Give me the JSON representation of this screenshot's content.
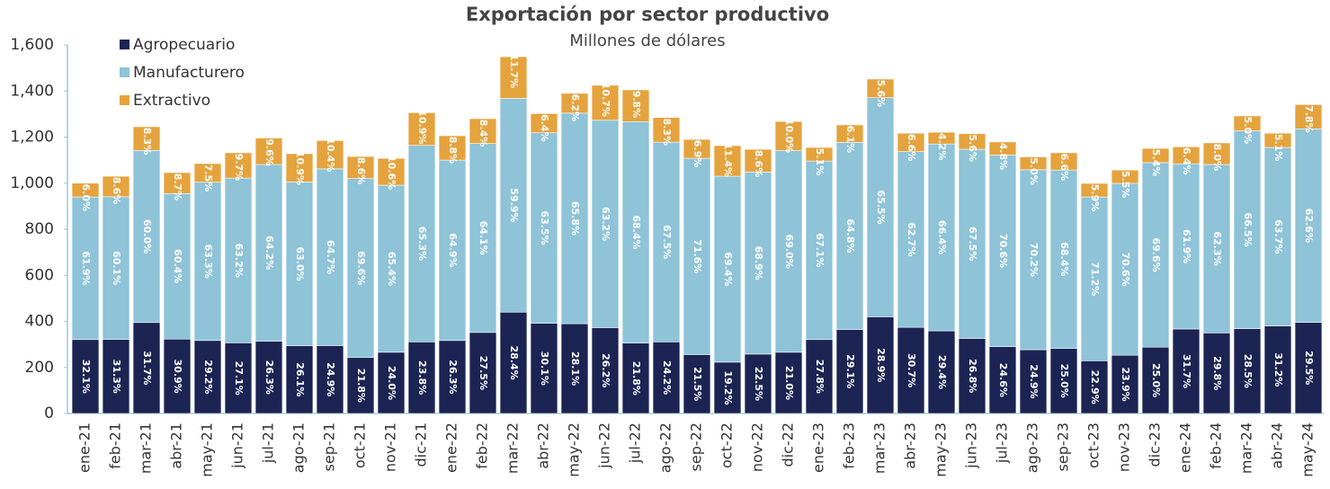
{
  "chart_data": {
    "type": "stacked_bar",
    "title": "Exportación por sector productivo",
    "subtitle": "Millones de dólares",
    "categories": [
      "ene-21",
      "feb-21",
      "mar-21",
      "abr-21",
      "may-21",
      "jun-21",
      "jul-21",
      "ago-21",
      "sep-21",
      "oct-21",
      "nov-21",
      "dic-21",
      "ene-22",
      "feb-22",
      "mar-22",
      "abr-22",
      "may-22",
      "jun-22",
      "jul-22",
      "ago-22",
      "sep-22",
      "oct-22",
      "nov-22",
      "dic-22",
      "ene-23",
      "feb-23",
      "mar-23",
      "abr-23",
      "may-23",
      "jun-23",
      "jul-23",
      "ago-23",
      "sep-23",
      "oct-23",
      "nov-23",
      "dic-23",
      "ene-24",
      "feb-24",
      "mar-24",
      "abr-24",
      "may-24"
    ],
    "series": [
      {
        "name": "Agropecuario",
        "color": "#1b2452",
        "values": [
          321,
          322,
          395,
          323,
          317,
          307,
          314,
          294,
          295,
          243,
          266,
          311,
          317,
          352,
          440,
          392,
          390,
          373,
          306,
          311,
          256,
          223,
          258,
          266,
          321,
          365,
          420,
          374,
          359,
          326,
          290,
          277,
          283,
          229,
          253,
          288,
          367,
          350,
          368,
          380,
          396
        ],
        "labels": [
          "32.1%",
          "31.3%",
          "31.7%",
          "30.9%",
          "29.2%",
          "27.1%",
          "26.3%",
          "26.1%",
          "24.9%",
          "21.8%",
          "24.0%",
          "23.8%",
          "26.3%",
          "27.5%",
          "28.4%",
          "30.1%",
          "28.1%",
          "26.2%",
          "21.8%",
          "24.2%",
          "21.5%",
          "19.2%",
          "22.5%",
          "21.0%",
          "27.8%",
          "29.1%",
          "28.9%",
          "30.7%",
          "29.4%",
          "26.8%",
          "24.6%",
          "24.9%",
          "25.0%",
          "22.9%",
          "23.9%",
          "25.0%",
          "31.7%",
          "29.8%",
          "28.5%",
          "31.2%",
          "29.5%"
        ]
      },
      {
        "name": "Manufacturero",
        "color": "#8ec3d8",
        "values": [
          619,
          619,
          747,
          632,
          687,
          715,
          767,
          711,
          767,
          777,
          725,
          853,
          783,
          820,
          928,
          827,
          914,
          900,
          961,
          867,
          852,
          807,
          790,
          875,
          775,
          812,
          951,
          763,
          811,
          821,
          832,
          781,
          774,
          711,
          746,
          801,
          717,
          731,
          859,
          775,
          840
        ],
        "labels": [
          "61.9%",
          "60.1%",
          "60.0%",
          "60.4%",
          "63.3%",
          "63.2%",
          "64.2%",
          "63.0%",
          "64.7%",
          "69.6%",
          "65.4%",
          "65.3%",
          "64.9%",
          "64.1%",
          "59.9%",
          "63.5%",
          "65.8%",
          "63.2%",
          "68.4%",
          "67.5%",
          "71.6%",
          "69.4%",
          "68.9%",
          "69.0%",
          "67.1%",
          "64.8%",
          "65.5%",
          "62.7%",
          "66.4%",
          "67.5%",
          "70.6%",
          "70.2%",
          "68.4%",
          "71.2%",
          "70.6%",
          "69.6%",
          "61.9%",
          "62.3%",
          "66.5%",
          "63.7%",
          "62.6%"
        ]
      },
      {
        "name": "Extractivo",
        "color": "#e5a33e",
        "values": [
          60,
          89,
          103,
          91,
          81,
          110,
          115,
          123,
          123,
          96,
          117,
          142,
          106,
          108,
          181,
          83,
          86,
          152,
          138,
          107,
          82,
          133,
          99,
          127,
          59,
          76,
          81,
          80,
          51,
          68,
          57,
          56,
          75,
          59,
          58,
          62,
          74,
          94,
          65,
          62,
          105
        ],
        "labels": [
          "6.0%",
          "8.6%",
          "8.3%",
          "8.7%",
          "7.5%",
          "9.7%",
          "9.6%",
          "10.9%",
          "10.4%",
          "8.6%",
          "10.6%",
          "10.9%",
          "8.8%",
          "8.4%",
          "11.7%",
          "6.4%",
          "6.2%",
          "10.7%",
          "9.8%",
          "8.3%",
          "6.9%",
          "11.4%",
          "8.6%",
          "10.0%",
          "5.1%",
          "6.1%",
          "5.6%",
          "6.6%",
          "4.2%",
          "5.6%",
          "4.8%",
          "5.0%",
          "6.6%",
          "5.9%",
          "5.5%",
          "5.4%",
          "6.4%",
          "8.0%",
          "5.0%",
          "5.1%",
          "7.8%"
        ]
      }
    ],
    "ylim": [
      0,
      1600
    ],
    "yticks": [
      0,
      200,
      400,
      600,
      800,
      {
        "value": 1000,
        "label": "1,000"
      },
      {
        "value": 1200,
        "label": "1,200"
      },
      {
        "value": 1400,
        "label": "1,400"
      },
      {
        "value": 1600,
        "label": "1,600"
      }
    ],
    "legend": "top-left"
  }
}
